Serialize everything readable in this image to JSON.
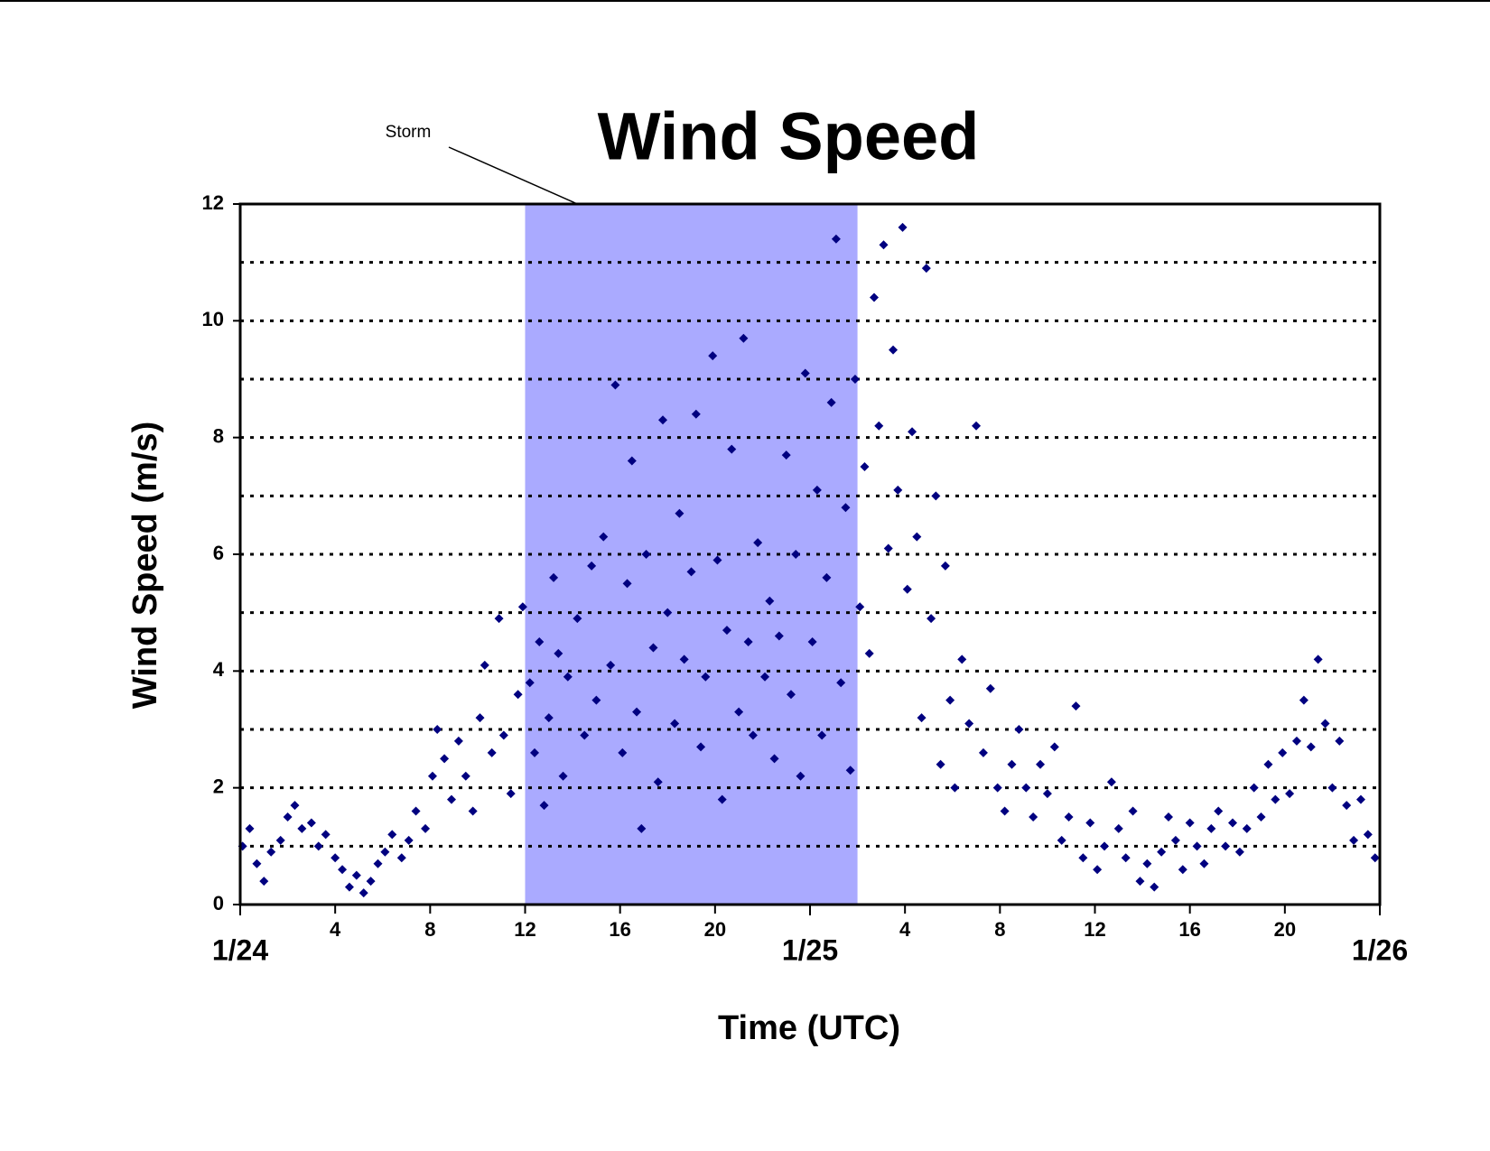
{
  "chart_data": {
    "type": "scatter",
    "title": "Wind Speed",
    "x_label": "Time (UTC)",
    "y_label": "Wind Speed (m/s)",
    "color": "#000080",
    "marker": "diamond",
    "xlim": [
      0,
      48
    ],
    "ylim": [
      0,
      12
    ],
    "yticks": [
      0,
      2,
      4,
      6,
      8,
      10,
      12
    ],
    "ygrid": [
      1,
      2,
      3,
      4,
      5,
      6,
      7,
      8,
      9,
      10,
      11
    ],
    "grid": true,
    "xticks": [
      4,
      8,
      12,
      16,
      20,
      {
        "value": 28,
        "label": "4"
      },
      {
        "value": 32,
        "label": "8"
      },
      {
        "value": 36,
        "label": "12"
      },
      {
        "value": 40,
        "label": "16"
      },
      {
        "value": 44,
        "label": "20"
      }
    ],
    "date_labels": [
      {
        "value": 0,
        "label": "1/24"
      },
      {
        "value": 24,
        "label": "1/25"
      },
      {
        "value": 48,
        "label": "1/26"
      }
    ],
    "shaded_regions": [
      {
        "label": "Storm",
        "xlim": [
          12,
          26
        ],
        "color": "#aaaaff"
      }
    ],
    "x": [
      0.1,
      0.4,
      0.7,
      1.0,
      1.3,
      1.7,
      2.0,
      2.3,
      2.6,
      3.0,
      3.3,
      3.6,
      4.0,
      4.3,
      4.6,
      4.9,
      5.2,
      5.5,
      5.8,
      6.1,
      6.4,
      6.8,
      7.1,
      7.4,
      7.8,
      8.1,
      8.3,
      8.6,
      8.9,
      9.2,
      9.5,
      9.8,
      10.1,
      10.3,
      10.6,
      10.9,
      11.1,
      11.4,
      11.7,
      11.9,
      12.2,
      12.4,
      12.6,
      12.8,
      13.0,
      13.2,
      13.4,
      13.6,
      13.8,
      14.2,
      14.5,
      14.8,
      15.0,
      15.3,
      15.6,
      15.8,
      16.1,
      16.3,
      16.5,
      16.7,
      16.9,
      17.1,
      17.4,
      17.6,
      17.8,
      18.0,
      18.3,
      18.5,
      18.7,
      19.0,
      19.2,
      19.4,
      19.6,
      19.9,
      20.1,
      20.3,
      20.5,
      20.7,
      21.0,
      21.2,
      21.4,
      21.6,
      21.8,
      22.1,
      22.3,
      22.5,
      22.7,
      23.0,
      23.2,
      23.4,
      23.6,
      23.8,
      24.1,
      24.3,
      24.5,
      24.7,
      24.9,
      25.1,
      25.3,
      25.5,
      25.7,
      25.9,
      26.1,
      26.3,
      26.5,
      26.7,
      26.9,
      27.1,
      27.3,
      27.5,
      27.7,
      27.9,
      28.1,
      28.3,
      28.5,
      28.7,
      28.9,
      29.1,
      29.3,
      29.5,
      29.7,
      29.9,
      30.1,
      30.4,
      30.7,
      31.0,
      31.3,
      31.6,
      31.9,
      32.2,
      32.5,
      32.8,
      33.1,
      33.4,
      33.7,
      34.0,
      34.3,
      34.6,
      34.9,
      35.2,
      35.5,
      35.8,
      36.1,
      36.4,
      36.7,
      37.0,
      37.3,
      37.6,
      37.9,
      38.2,
      38.5,
      38.8,
      39.1,
      39.4,
      39.7,
      40.0,
      40.3,
      40.6,
      40.9,
      41.2,
      41.5,
      41.8,
      42.1,
      42.4,
      42.7,
      43.0,
      43.3,
      43.6,
      43.9,
      44.2,
      44.5,
      44.8,
      45.1,
      45.4,
      45.7,
      46.0,
      46.3,
      46.6,
      46.9,
      47.2,
      47.5,
      47.8
    ],
    "values": [
      1.0,
      1.3,
      0.7,
      0.4,
      0.9,
      1.1,
      1.5,
      1.7,
      1.3,
      1.4,
      1.0,
      1.2,
      0.8,
      0.6,
      0.3,
      0.5,
      0.2,
      0.4,
      0.7,
      0.9,
      1.2,
      0.8,
      1.1,
      1.6,
      1.3,
      2.2,
      3.0,
      2.5,
      1.8,
      2.8,
      2.2,
      1.6,
      3.2,
      4.1,
      2.6,
      4.9,
      2.9,
      1.9,
      3.6,
      5.1,
      3.8,
      2.6,
      4.5,
      1.7,
      3.2,
      5.6,
      4.3,
      2.2,
      3.9,
      4.9,
      2.9,
      5.8,
      3.5,
      6.3,
      4.1,
      8.9,
      2.6,
      5.5,
      7.6,
      3.3,
      1.3,
      6.0,
      4.4,
      2.1,
      8.3,
      5.0,
      3.1,
      6.7,
      4.2,
      5.7,
      8.4,
      2.7,
      3.9,
      9.4,
      5.9,
      1.8,
      4.7,
      7.8,
      3.3,
      9.7,
      4.5,
      2.9,
      6.2,
      3.9,
      5.2,
      2.5,
      4.6,
      7.7,
      3.6,
      6.0,
      2.2,
      9.1,
      4.5,
      7.1,
      2.9,
      5.6,
      8.6,
      11.4,
      3.8,
      6.8,
      2.3,
      9.0,
      5.1,
      7.5,
      4.3,
      10.4,
      8.2,
      11.3,
      6.1,
      9.5,
      7.1,
      11.6,
      5.4,
      8.1,
      6.3,
      3.2,
      10.9,
      4.9,
      7.0,
      2.4,
      5.8,
      3.5,
      2.0,
      4.2,
      3.1,
      8.2,
      2.6,
      3.7,
      2.0,
      1.6,
      2.4,
      3.0,
      2.0,
      1.5,
      2.4,
      1.9,
      2.7,
      1.1,
      1.5,
      3.4,
      0.8,
      1.4,
      0.6,
      1.0,
      2.1,
      1.3,
      0.8,
      1.6,
      0.4,
      0.7,
      0.3,
      0.9,
      1.5,
      1.1,
      0.6,
      1.4,
      1.0,
      0.7,
      1.3,
      1.6,
      1.0,
      1.4,
      0.9,
      1.3,
      2.0,
      1.5,
      2.4,
      1.8,
      2.6,
      1.9,
      2.8,
      3.5,
      2.7,
      4.2,
      3.1,
      2.0,
      2.8,
      1.7,
      1.1,
      1.8,
      1.2,
      0.8
    ]
  }
}
